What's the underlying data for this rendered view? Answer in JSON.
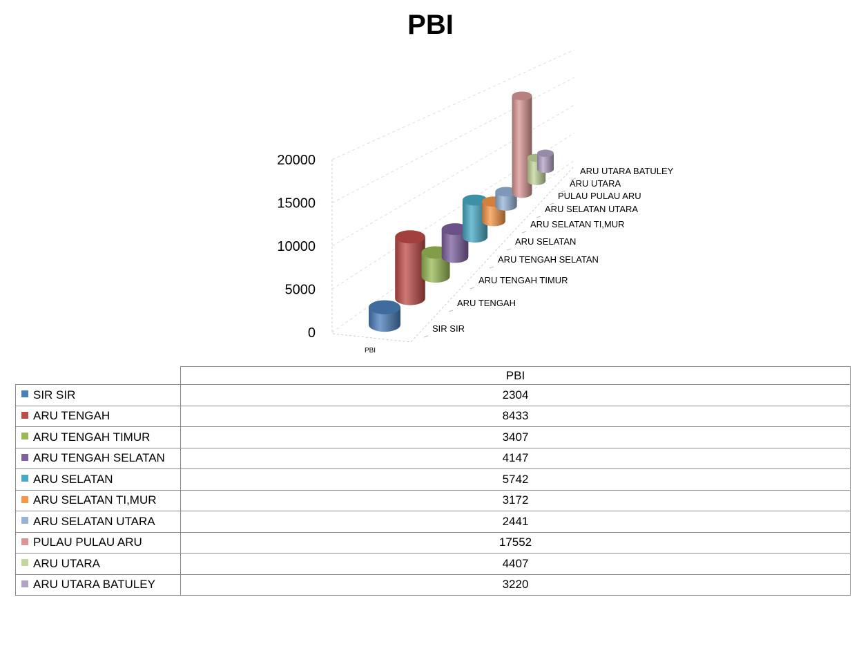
{
  "chart_data": {
    "type": "bar",
    "style": "3d-cylinder",
    "title": "PBI",
    "x_category": "PBI",
    "categories": [
      "SIR SIR",
      "ARU TENGAH",
      "ARU TENGAH TIMUR",
      "ARU TENGAH SELATAN",
      "ARU SELATAN",
      "ARU SELATAN TI,MUR",
      "ARU SELATAN UTARA",
      "PULAU PULAU ARU",
      "ARU UTARA",
      "ARU UTARA BATULEY"
    ],
    "values": [
      2304,
      8433,
      3407,
      4147,
      5742,
      3172,
      2441,
      17552,
      4407,
      3220
    ],
    "colors": [
      "#4a7ebb",
      "#be4b48",
      "#98b954",
      "#7d60a0",
      "#46aac5",
      "#f79646",
      "#95b3d7",
      "#d99694",
      "#c3d69b",
      "#b3a2c7"
    ],
    "ylim": [
      0,
      20000
    ],
    "yticks": [
      "0",
      "5000",
      "10000",
      "15000",
      "20000"
    ],
    "grid": true,
    "data_table": {
      "header": "PBI",
      "rows": [
        {
          "name": "SIR SIR",
          "value": "2304"
        },
        {
          "name": "ARU TENGAH",
          "value": "8433"
        },
        {
          "name": "ARU TENGAH TIMUR",
          "value": "3407"
        },
        {
          "name": "ARU TENGAH SELATAN",
          "value": "4147"
        },
        {
          "name": "ARU SELATAN",
          "value": "5742"
        },
        {
          "name": "ARU SELATAN TI,MUR",
          "value": "3172"
        },
        {
          "name": "ARU SELATAN UTARA",
          "value": "2441"
        },
        {
          "name": "PULAU PULAU ARU",
          "value": "17552"
        },
        {
          "name": "ARU UTARA",
          "value": "4407"
        },
        {
          "name": "ARU UTARA BATULEY",
          "value": "3220"
        }
      ]
    }
  }
}
